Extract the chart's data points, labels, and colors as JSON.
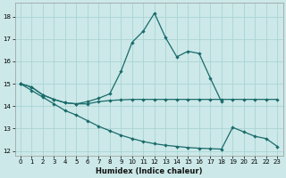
{
  "xlabel": "Humidex (Indice chaleur)",
  "bg_color": "#cce8e8",
  "grid_color": "#aad4d4",
  "line_color": "#1a6b6b",
  "xlim": [
    -0.5,
    23.5
  ],
  "ylim": [
    11.8,
    18.6
  ],
  "yticks": [
    12,
    13,
    14,
    15,
    16,
    17,
    18
  ],
  "xticks": [
    0,
    1,
    2,
    3,
    4,
    5,
    6,
    7,
    8,
    9,
    10,
    11,
    12,
    13,
    14,
    15,
    16,
    17,
    18,
    19,
    20,
    21,
    22,
    23
  ],
  "line1_x": [
    0,
    1,
    2,
    3,
    4,
    5,
    6,
    7,
    8,
    9,
    10,
    11,
    12,
    13,
    14,
    15,
    16,
    17,
    18
  ],
  "line1_y": [
    15.0,
    14.85,
    14.5,
    14.3,
    14.15,
    14.1,
    14.2,
    14.35,
    14.55,
    15.55,
    16.85,
    17.35,
    18.15,
    17.05,
    16.2,
    16.45,
    16.35,
    15.25,
    14.2
  ],
  "line2_x": [
    0,
    1,
    2,
    3,
    4,
    5,
    6,
    7,
    8,
    9,
    10,
    11,
    12,
    13,
    14,
    15,
    16,
    17,
    18,
    19,
    20,
    21,
    22,
    23
  ],
  "line2_y": [
    15.0,
    14.85,
    14.5,
    14.3,
    14.15,
    14.1,
    14.1,
    14.2,
    14.25,
    14.28,
    14.3,
    14.3,
    14.3,
    14.3,
    14.3,
    14.3,
    14.3,
    14.3,
    14.3,
    14.3,
    14.3,
    14.3,
    14.3,
    14.3
  ],
  "line3_x": [
    0,
    1,
    2,
    3,
    4,
    5,
    6,
    7,
    8,
    9,
    10,
    11,
    12,
    13,
    14,
    15,
    16,
    17,
    18,
    19,
    20,
    21,
    22,
    23
  ],
  "line3_y": [
    15.0,
    14.7,
    14.4,
    14.1,
    13.8,
    13.6,
    13.35,
    13.1,
    12.9,
    12.7,
    12.55,
    12.42,
    12.32,
    12.25,
    12.2,
    12.15,
    12.12,
    12.1,
    12.08,
    13.05,
    12.85,
    12.65,
    12.55,
    12.2
  ]
}
